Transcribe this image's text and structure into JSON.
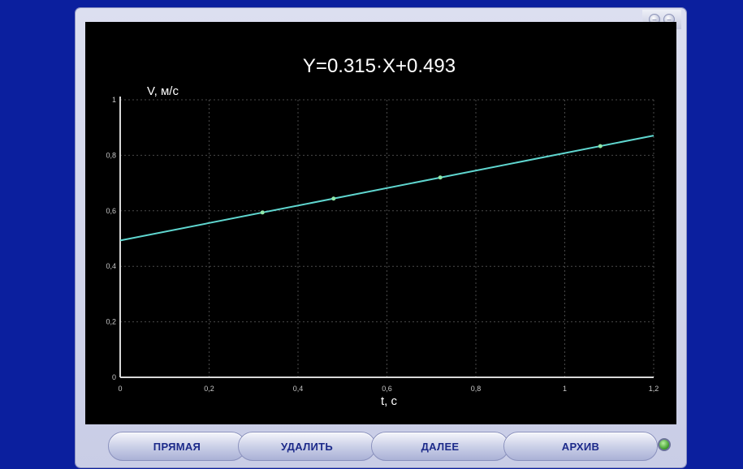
{
  "window": {
    "controls": [
      {
        "icon": "minimize-icon",
        "glyph": "–"
      },
      {
        "icon": "close-icon",
        "glyph": "–"
      }
    ]
  },
  "chart_data": {
    "type": "scatter",
    "title": "Y=0.315·X+0.493",
    "xlabel": "t, c",
    "ylabel": "V, м/с",
    "xlim": [
      0,
      1.2
    ],
    "ylim": [
      0,
      1
    ],
    "x_ticks": [
      "0",
      "0,2",
      "0,4",
      "0,6",
      "0,8",
      "1",
      "1,2"
    ],
    "y_ticks": [
      "0",
      "0,2",
      "0,4",
      "0,6",
      "0,8",
      "1"
    ],
    "grid": true,
    "series": [
      {
        "points": [
          {
            "x": 0.32,
            "y": 0.594
          },
          {
            "x": 0.48,
            "y": 0.644
          },
          {
            "x": 0.72,
            "y": 0.72
          },
          {
            "x": 1.08,
            "y": 0.833
          }
        ]
      }
    ],
    "fit_line": {
      "slope": 0.315,
      "intercept": 0.493,
      "x_range": [
        0,
        1.2
      ]
    },
    "colors": {
      "line": "#5fd6cf",
      "points": "#8fe8a8",
      "grid": "#4a4a4a",
      "axes": "#d8d8d8",
      "text": "#ffffff",
      "tick_text": "#c8c8c8"
    }
  },
  "buttons": {
    "line": "ПРЯМАЯ",
    "delete": "УДАЛИТЬ",
    "next": "ДАЛЕЕ",
    "archive": "АРХИВ"
  },
  "status": {
    "led_color": "#3a9a28"
  }
}
